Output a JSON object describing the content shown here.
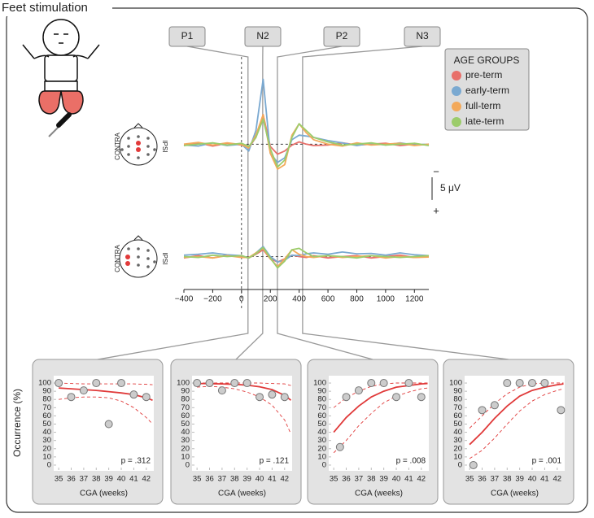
{
  "title": "Feet stimulation",
  "chart_data": [
    {
      "type": "line",
      "legend_title": "AGE GROUPS",
      "left_label": "CONTRA",
      "right_label": "IPSI",
      "xlim": [
        -400,
        1300
      ],
      "ylim": [
        -16,
        8
      ],
      "y_inverted": true,
      "scale_bar": {
        "value": 5,
        "label": "5 μV"
      },
      "scale_bar_top": "−",
      "scale_bar_bottom": "+",
      "components": [
        {
          "label": "P1",
          "latency": 45
        },
        {
          "label": "N2",
          "latency": 147
        },
        {
          "label": "P2",
          "latency": 249
        },
        {
          "label": "N3",
          "latency": 424
        }
      ],
      "x": [
        -400,
        -300,
        -200,
        -100,
        0,
        50,
        100,
        150,
        200,
        250,
        300,
        350,
        400,
        450,
        500,
        600,
        700,
        800,
        900,
        1000,
        1100,
        1200,
        1300
      ],
      "series": [
        {
          "name": "pre-term",
          "color": "#e8706a",
          "values": [
            0.3,
            -0.3,
            0.4,
            -0.2,
            0.2,
            0.8,
            -1.5,
            -6.5,
            0.5,
            2.2,
            1.5,
            0.2,
            -0.5,
            0,
            0.3,
            0.2,
            -0.3,
            0.2,
            0,
            -0.2,
            0.3,
            0,
            0.2
          ]
        },
        {
          "name": "early-term",
          "color": "#7aa9d1",
          "values": [
            0.2,
            0.4,
            -0.3,
            0.3,
            0,
            1.5,
            -3,
            -14.3,
            2,
            4,
            3,
            -1,
            -2,
            -1.8,
            -1.5,
            -0.8,
            -0.3,
            0.3,
            -0.2,
            0.2,
            -0.3,
            0.2,
            0
          ]
        },
        {
          "name": "full-term",
          "color": "#f3a95a",
          "values": [
            0,
            -0.4,
            0.2,
            -0.3,
            0.1,
            0.8,
            -2,
            -6.5,
            2,
            5.5,
            4.5,
            -2,
            -4.5,
            -2.5,
            -1,
            0,
            0.4,
            -0.3,
            0.2,
            0,
            -0.2,
            0.3,
            0
          ]
        },
        {
          "name": "late-term",
          "color": "#9ccc6b",
          "values": [
            0.3,
            0,
            -0.3,
            0.2,
            -0.2,
            0.5,
            -1.5,
            -5.5,
            1,
            5,
            3.5,
            -1.5,
            -4.5,
            -3,
            -1.5,
            -0.5,
            0.2,
            0,
            -0.3,
            0.2,
            0,
            -0.2,
            0.3
          ]
        }
      ]
    },
    {
      "type": "line",
      "left_label": "CONTRA",
      "right_label": "IPSI",
      "xlim": [
        -400,
        1300
      ],
      "ylim": [
        -6,
        6
      ],
      "y_inverted": true,
      "xticks": [
        {
          "value": -400,
          "label": "−400"
        },
        {
          "value": -200,
          "label": "−200"
        },
        0,
        200,
        400,
        600,
        800,
        1000,
        1200
      ],
      "x": [
        -400,
        -300,
        -200,
        -100,
        0,
        50,
        100,
        150,
        200,
        250,
        300,
        350,
        400,
        450,
        500,
        600,
        700,
        800,
        900,
        1000,
        1100,
        1200,
        1300
      ],
      "series": [
        {
          "name": "pre-term",
          "color": "#e8706a",
          "values": [
            0.3,
            -0.2,
            0.3,
            -0.3,
            0,
            0.3,
            -0.5,
            -1.5,
            0.5,
            1.2,
            0.5,
            -0.3,
            0,
            0.2,
            -0.2,
            0.3,
            0,
            -0.2,
            0.3,
            0,
            -0.3,
            0.2,
            0
          ]
        },
        {
          "name": "early-term",
          "color": "#7aa9d1",
          "values": [
            -0.3,
            -0.5,
            -0.8,
            -0.4,
            -0.2,
            0.3,
            -0.8,
            -2.2,
            0,
            1.2,
            0.8,
            -0.3,
            -0.2,
            -0.6,
            -0.8,
            -0.5,
            -1,
            -0.6,
            -0.7,
            -0.3,
            -0.8,
            -0.4,
            -0.2
          ]
        },
        {
          "name": "full-term",
          "color": "#f3a95a",
          "values": [
            0.2,
            0,
            0.3,
            -0.2,
            0.2,
            0.2,
            -0.8,
            -1.8,
            0.5,
            2.2,
            0.5,
            -1.5,
            -0.5,
            0,
            0.2,
            -0.2,
            0.2,
            0,
            -0.2,
            0.3,
            0,
            0.2,
            0.1
          ]
        },
        {
          "name": "late-term",
          "color": "#9ccc6b",
          "values": [
            0,
            0.2,
            -0.3,
            0,
            -0.2,
            0.3,
            -0.6,
            -2,
            0.3,
            2.5,
            1,
            -1.5,
            -1.8,
            -0.8,
            0,
            -0.2,
            0,
            0.3,
            -0.2,
            0,
            0.2,
            0,
            -0.2
          ]
        }
      ]
    },
    {
      "type": "scatter",
      "ylabel": "Occurrence (%)",
      "xlabel": "CGA (weeks)",
      "annotation": "p = .312",
      "xlim": [
        34.6,
        42.6
      ],
      "ylim": [
        -5,
        105
      ],
      "xticks": [
        35,
        36,
        37,
        38,
        39,
        40,
        41,
        42
      ],
      "yticks": [
        0,
        10,
        20,
        30,
        40,
        50,
        60,
        70,
        80,
        90,
        100
      ],
      "point_color": "#cccccc",
      "fit_color": "#e03a3a",
      "points": {
        "x": [
          35,
          36,
          37,
          38,
          39,
          40,
          41,
          42
        ],
        "values": [
          100,
          83,
          91,
          100,
          50,
          100,
          86,
          83
        ]
      },
      "fit_x": [
        35,
        36,
        37,
        38,
        39,
        40,
        41,
        42,
        42.5
      ],
      "fit": [
        94,
        93,
        92,
        91,
        89.5,
        88,
        86,
        82,
        79
      ],
      "ci_upper": [
        100,
        99.5,
        99,
        99,
        99,
        99,
        99,
        98.5,
        98
      ],
      "ci_lower": [
        80,
        82,
        83,
        83,
        82,
        78,
        70,
        58,
        50
      ]
    },
    {
      "type": "scatter",
      "xlabel": "CGA (weeks)",
      "annotation": "p = .121",
      "xlim": [
        34.6,
        42.6
      ],
      "ylim": [
        -5,
        105
      ],
      "xticks": [
        35,
        36,
        37,
        38,
        39,
        40,
        41,
        42
      ],
      "yticks": [
        0,
        10,
        20,
        30,
        40,
        50,
        60,
        70,
        80,
        90,
        100
      ],
      "point_color": "#cccccc",
      "fit_color": "#e03a3a",
      "points": {
        "x": [
          35,
          36,
          37,
          38,
          39,
          40,
          41,
          42
        ],
        "values": [
          100,
          100,
          91,
          100,
          100,
          83,
          86,
          83
        ]
      },
      "fit_x": [
        35,
        36,
        37,
        38,
        39,
        40,
        41,
        42,
        42.5
      ],
      "fit": [
        99.5,
        99.3,
        99,
        98.5,
        97.5,
        95.5,
        92,
        85,
        79
      ],
      "ci_upper": [
        100,
        100,
        100,
        100,
        100,
        100,
        99.5,
        99,
        97
      ],
      "ci_lower": [
        95,
        96,
        95,
        93,
        89,
        83,
        73,
        55,
        38
      ]
    },
    {
      "type": "scatter",
      "xlabel": "CGA (weeks)",
      "annotation": "p = .008",
      "xlim": [
        34.6,
        42.6
      ],
      "ylim": [
        -5,
        105
      ],
      "xticks": [
        35,
        36,
        37,
        38,
        39,
        40,
        41,
        42
      ],
      "yticks": [
        0,
        10,
        20,
        30,
        40,
        50,
        60,
        70,
        80,
        90,
        100
      ],
      "point_color": "#cccccc",
      "fit_color": "#e03a3a",
      "points": {
        "x": [
          35.5,
          36,
          37,
          38,
          39,
          40,
          41,
          42
        ],
        "values": [
          22,
          83,
          91,
          100,
          100,
          83,
          100,
          83
        ]
      },
      "fit_x": [
        35,
        36,
        37,
        38,
        39,
        40,
        41,
        42,
        42.5
      ],
      "fit": [
        40,
        58,
        72,
        83,
        90,
        95,
        97,
        99,
        99.5
      ],
      "ci_upper": [
        70,
        82,
        90,
        96,
        99,
        100,
        100,
        100,
        100
      ],
      "ci_lower": [
        15,
        30,
        48,
        63,
        76,
        84,
        89,
        93,
        94
      ]
    },
    {
      "type": "scatter",
      "xlabel": "CGA (weeks)",
      "annotation": "p = .001",
      "xlim": [
        34.6,
        42.6
      ],
      "ylim": [
        -5,
        105
      ],
      "xticks": [
        35,
        36,
        37,
        38,
        39,
        40,
        41,
        42
      ],
      "yticks": [
        0,
        10,
        20,
        30,
        40,
        50,
        60,
        70,
        80,
        90,
        100
      ],
      "point_color": "#cccccc",
      "fit_color": "#e03a3a",
      "points": {
        "x": [
          35.3,
          36,
          37,
          38,
          39,
          40,
          41,
          42.3
        ],
        "values": [
          0,
          67,
          73,
          100,
          100,
          100,
          100,
          67
        ]
      },
      "fit_x": [
        35,
        36,
        37,
        38,
        39,
        40,
        41,
        42,
        42.5
      ],
      "fit": [
        25,
        40,
        57,
        72,
        84,
        91,
        95,
        98,
        99
      ],
      "ci_upper": [
        45,
        60,
        75,
        87,
        95,
        99,
        100,
        100,
        100
      ],
      "ci_lower": [
        8,
        18,
        33,
        50,
        66,
        78,
        86,
        91,
        93
      ]
    }
  ]
}
